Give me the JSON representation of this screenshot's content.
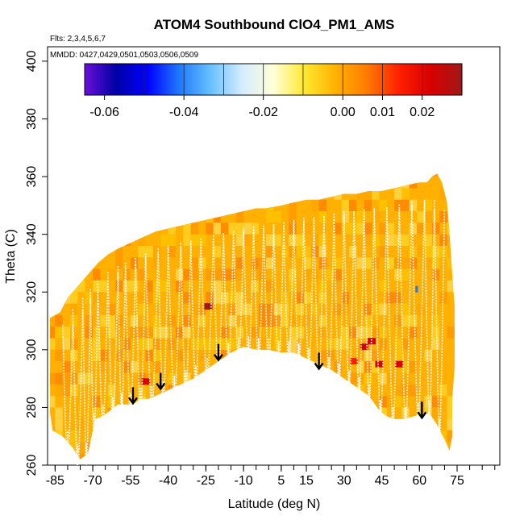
{
  "chart_data": {
    "type": "heatmap",
    "title": "ATOM4 Southbound ClO4_PM1_AMS",
    "flights_note": "Flts: 2,3,4,5,6,7",
    "dates_note": "MMDD: 0427,0429,0501,0503,0506,0509",
    "xlabel": "Latitude (deg N)",
    "ylabel": "Theta (C)",
    "xlim": [
      -88,
      92
    ],
    "ylim": [
      260,
      405
    ],
    "x_ticks": [
      -85,
      -70,
      -55,
      -40,
      -25,
      -10,
      5,
      15,
      30,
      45,
      60,
      75
    ],
    "x_minor_step": 5,
    "y_ticks": [
      260,
      280,
      300,
      320,
      340,
      360,
      380,
      400
    ],
    "colorbar": {
      "ticks": [
        -0.06,
        -0.04,
        -0.02,
        0.0,
        0.01,
        0.02
      ],
      "tick_labels": [
        "-0.06",
        "-0.04",
        "-0.02",
        "0.00",
        "0.01",
        "0.02"
      ],
      "boundaries": [
        -0.065,
        -0.05,
        -0.04,
        -0.03,
        -0.02,
        -0.01,
        0.0,
        0.01,
        0.02,
        0.03
      ],
      "colors": [
        "#6a10d8",
        "#0000a6",
        "#0000ff",
        "#1e78ff",
        "#66c0ff",
        "#d4ecff",
        "#ffffd8",
        "#ffe830",
        "#ffb000",
        "#ff7a00",
        "#ff2000",
        "#d80000",
        "#a01818"
      ]
    },
    "domain_upper": [
      [
        -87,
        311
      ],
      [
        -83,
        313
      ],
      [
        -80,
        318
      ],
      [
        -76,
        322
      ],
      [
        -72,
        326
      ],
      [
        -68,
        330
      ],
      [
        -64,
        333
      ],
      [
        -60,
        335
      ],
      [
        -55,
        337
      ],
      [
        -50,
        339
      ],
      [
        -45,
        341
      ],
      [
        -40,
        342
      ],
      [
        -35,
        343
      ],
      [
        -30,
        344
      ],
      [
        -25,
        345
      ],
      [
        -20,
        346
      ],
      [
        -15,
        347
      ],
      [
        -10,
        348
      ],
      [
        -5,
        349
      ],
      [
        -1,
        349
      ],
      [
        5,
        350
      ],
      [
        10,
        351
      ],
      [
        15,
        352
      ],
      [
        20,
        352
      ],
      [
        25,
        353
      ],
      [
        30,
        354
      ],
      [
        35,
        354
      ],
      [
        40,
        355
      ],
      [
        45,
        355
      ],
      [
        50,
        356
      ],
      [
        55,
        357
      ],
      [
        60,
        358
      ],
      [
        63,
        358
      ],
      [
        65,
        360
      ],
      [
        67,
        361
      ],
      [
        69,
        358
      ],
      [
        71,
        351
      ],
      [
        72,
        340
      ],
      [
        73,
        327
      ],
      [
        74,
        315
      ],
      [
        74,
        305
      ],
      [
        74,
        294
      ],
      [
        73,
        282
      ],
      [
        73,
        270
      ],
      [
        72,
        265
      ]
    ],
    "domain_lower": [
      [
        72,
        265
      ],
      [
        70,
        269
      ],
      [
        67,
        274
      ],
      [
        64,
        278
      ],
      [
        61,
        278
      ],
      [
        58,
        277
      ],
      [
        54,
        276
      ],
      [
        50,
        276
      ],
      [
        47,
        277
      ],
      [
        44,
        279
      ],
      [
        40,
        284
      ],
      [
        35,
        287
      ],
      [
        30,
        290
      ],
      [
        25,
        293
      ],
      [
        20,
        295
      ],
      [
        15,
        297
      ],
      [
        10,
        299
      ],
      [
        5,
        299
      ],
      [
        0,
        300
      ],
      [
        -5,
        300
      ],
      [
        -10,
        301
      ],
      [
        -15,
        299
      ],
      [
        -20,
        296
      ],
      [
        -25,
        293
      ],
      [
        -30,
        290
      ],
      [
        -35,
        288
      ],
      [
        -40,
        286
      ],
      [
        -45,
        284
      ],
      [
        -48,
        283
      ],
      [
        -51,
        283
      ],
      [
        -54,
        281
      ],
      [
        -57,
        281
      ],
      [
        -60,
        281
      ],
      [
        -63,
        279
      ],
      [
        -66,
        277
      ],
      [
        -69,
        276
      ],
      [
        -72,
        264
      ],
      [
        -75,
        262
      ],
      [
        -78,
        266
      ],
      [
        -82,
        270
      ],
      [
        -86,
        272
      ],
      [
        -87,
        278
      ]
    ],
    "hotspots": [
      {
        "lat": 41,
        "theta": 303,
        "value": 0.022
      },
      {
        "lat": 38,
        "theta": 301,
        "value": 0.018
      },
      {
        "lat": 44,
        "theta": 295,
        "value": 0.02
      },
      {
        "lat": 52,
        "theta": 295,
        "value": 0.018
      },
      {
        "lat": -24,
        "theta": 315,
        "value": 0.025
      },
      {
        "lat": -49,
        "theta": 289,
        "value": 0.019
      },
      {
        "lat": 34,
        "theta": 296,
        "value": 0.012
      },
      {
        "lat": 60,
        "theta": 321,
        "value": -0.04
      },
      {
        "lat": 61,
        "theta": 321,
        "value": -0.005
      }
    ],
    "flight_profiles": [
      -82,
      -78,
      -74,
      -71,
      -68,
      -64,
      -60,
      -57,
      -53,
      -49,
      -44,
      -40,
      -35,
      -31,
      -27,
      -22,
      -18,
      -14,
      -10,
      -6,
      -2,
      2,
      6,
      10,
      14,
      18,
      22,
      26,
      30,
      34,
      38,
      42,
      47,
      52,
      57,
      62,
      66,
      70
    ],
    "arrows": [
      {
        "lat": -54,
        "theta": 287
      },
      {
        "lat": -43,
        "theta": 292
      },
      {
        "lat": -20,
        "theta": 302
      },
      {
        "lat": 20,
        "theta": 299
      },
      {
        "lat": 61,
        "theta": 282
      }
    ]
  }
}
